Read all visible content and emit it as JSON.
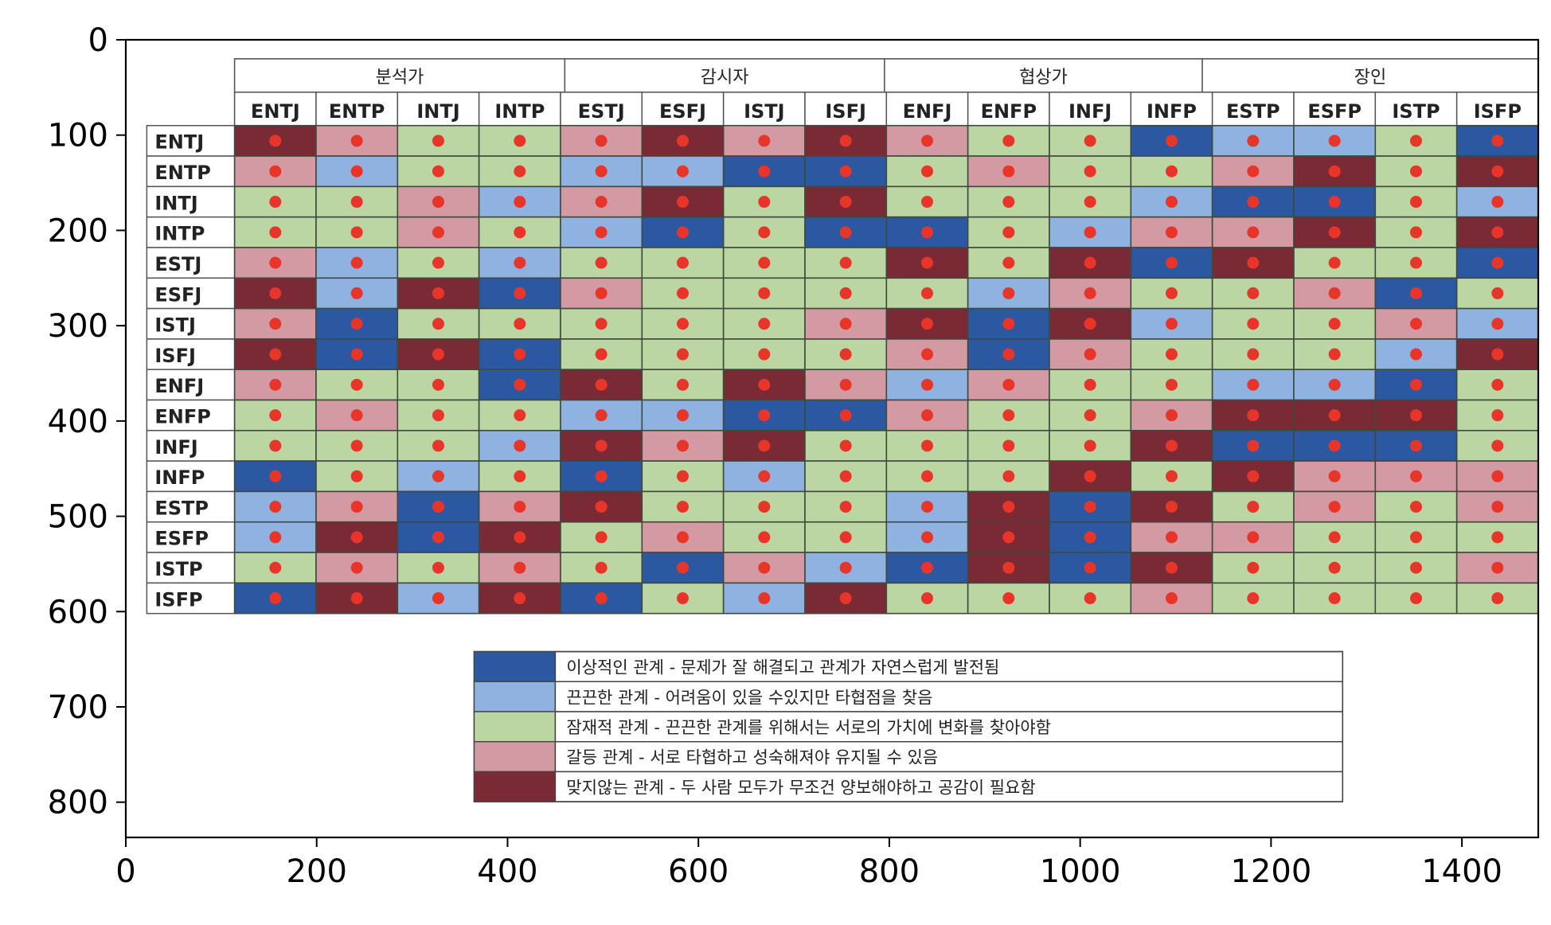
{
  "chart_data": {
    "type": "heatmap",
    "x_axis": {
      "range": [
        0,
        1480
      ],
      "ticks": [
        0,
        200,
        400,
        600,
        800,
        1000,
        1200,
        1400
      ]
    },
    "y_axis": {
      "range": [
        837,
        0
      ],
      "inverted": true,
      "ticks": [
        0,
        100,
        200,
        300,
        400,
        500,
        600,
        700,
        800
      ]
    },
    "groups": [
      "분석가",
      "감시자",
      "협상가",
      "장인"
    ],
    "columns": [
      "ENTJ",
      "ENTP",
      "INTJ",
      "INTP",
      "ESTJ",
      "ESFJ",
      "ISTJ",
      "ISFJ",
      "ENFJ",
      "ENFP",
      "INFJ",
      "INFP",
      "ESTP",
      "ESFP",
      "ISTP",
      "ISFP"
    ],
    "rows": [
      "ENTJ",
      "ENTP",
      "INTJ",
      "INTP",
      "ESTJ",
      "ESFJ",
      "ISTJ",
      "ISFJ",
      "ENFJ",
      "ENFP",
      "INFJ",
      "INFP",
      "ESTP",
      "ESFP",
      "ISTP",
      "ISFP"
    ],
    "categories": {
      "1": {
        "label": "이상적인 관계 - 문제가 잘 해결되고 관계가 자연스럽게 발전됨",
        "color": "#2b58a0"
      },
      "2": {
        "label": "끈끈한 관계 - 어려움이 있을 수있지만 타협점을 찾음",
        "color": "#8fb2e0"
      },
      "3": {
        "label": "잠재적 관계 - 끈끈한 관계를 위해서는 서로의 가치에 변화를 찾아야함",
        "color": "#bcd6a3"
      },
      "4": {
        "label": "갈등 관계 - 서로 타협하고 성숙해져야 유지될 수 있음",
        "color": "#d49aa4"
      },
      "5": {
        "label": "맞지않는 관계 - 두 사람 모두가 무조건 양보해야하고 공감이 필요함",
        "color": "#7a2a35"
      }
    },
    "matrix": [
      [
        5,
        4,
        3,
        3,
        4,
        5,
        4,
        5,
        4,
        3,
        3,
        1,
        2,
        2,
        3,
        1
      ],
      [
        4,
        2,
        3,
        3,
        2,
        2,
        1,
        1,
        3,
        4,
        3,
        3,
        4,
        5,
        3,
        5
      ],
      [
        3,
        3,
        4,
        2,
        4,
        5,
        3,
        5,
        3,
        3,
        3,
        2,
        1,
        1,
        3,
        2
      ],
      [
        3,
        3,
        4,
        3,
        2,
        1,
        3,
        1,
        1,
        3,
        2,
        4,
        4,
        5,
        3,
        5
      ],
      [
        4,
        2,
        3,
        2,
        3,
        3,
        3,
        3,
        5,
        3,
        5,
        1,
        5,
        3,
        3,
        1
      ],
      [
        5,
        2,
        5,
        1,
        4,
        3,
        3,
        3,
        3,
        2,
        4,
        3,
        3,
        4,
        1,
        3
      ],
      [
        4,
        1,
        3,
        3,
        3,
        3,
        3,
        4,
        5,
        1,
        5,
        2,
        3,
        3,
        4,
        2
      ],
      [
        5,
        1,
        5,
        1,
        3,
        3,
        3,
        3,
        4,
        1,
        4,
        3,
        3,
        3,
        2,
        5
      ],
      [
        4,
        3,
        3,
        1,
        5,
        3,
        5,
        4,
        2,
        4,
        3,
        3,
        2,
        2,
        1,
        3
      ],
      [
        3,
        4,
        3,
        3,
        2,
        2,
        1,
        1,
        4,
        3,
        3,
        4,
        5,
        5,
        5,
        3
      ],
      [
        3,
        3,
        3,
        2,
        5,
        4,
        5,
        3,
        3,
        3,
        3,
        5,
        1,
        1,
        1,
        3
      ],
      [
        1,
        3,
        2,
        3,
        1,
        3,
        2,
        3,
        3,
        3,
        5,
        3,
        5,
        4,
        4,
        4
      ],
      [
        2,
        4,
        1,
        4,
        5,
        3,
        3,
        3,
        2,
        5,
        1,
        5,
        3,
        4,
        3,
        4
      ],
      [
        2,
        5,
        1,
        5,
        3,
        4,
        3,
        3,
        2,
        5,
        1,
        4,
        4,
        3,
        3,
        3
      ],
      [
        3,
        4,
        3,
        4,
        3,
        1,
        4,
        2,
        1,
        5,
        1,
        5,
        3,
        3,
        3,
        4
      ],
      [
        1,
        5,
        2,
        5,
        1,
        3,
        2,
        5,
        3,
        3,
        3,
        4,
        3,
        3,
        3,
        3
      ]
    ],
    "markers": {
      "shape": "circle",
      "color": "#e8352a",
      "position": "cell-centers"
    },
    "legend_position": "bottom-center",
    "grid": false
  }
}
